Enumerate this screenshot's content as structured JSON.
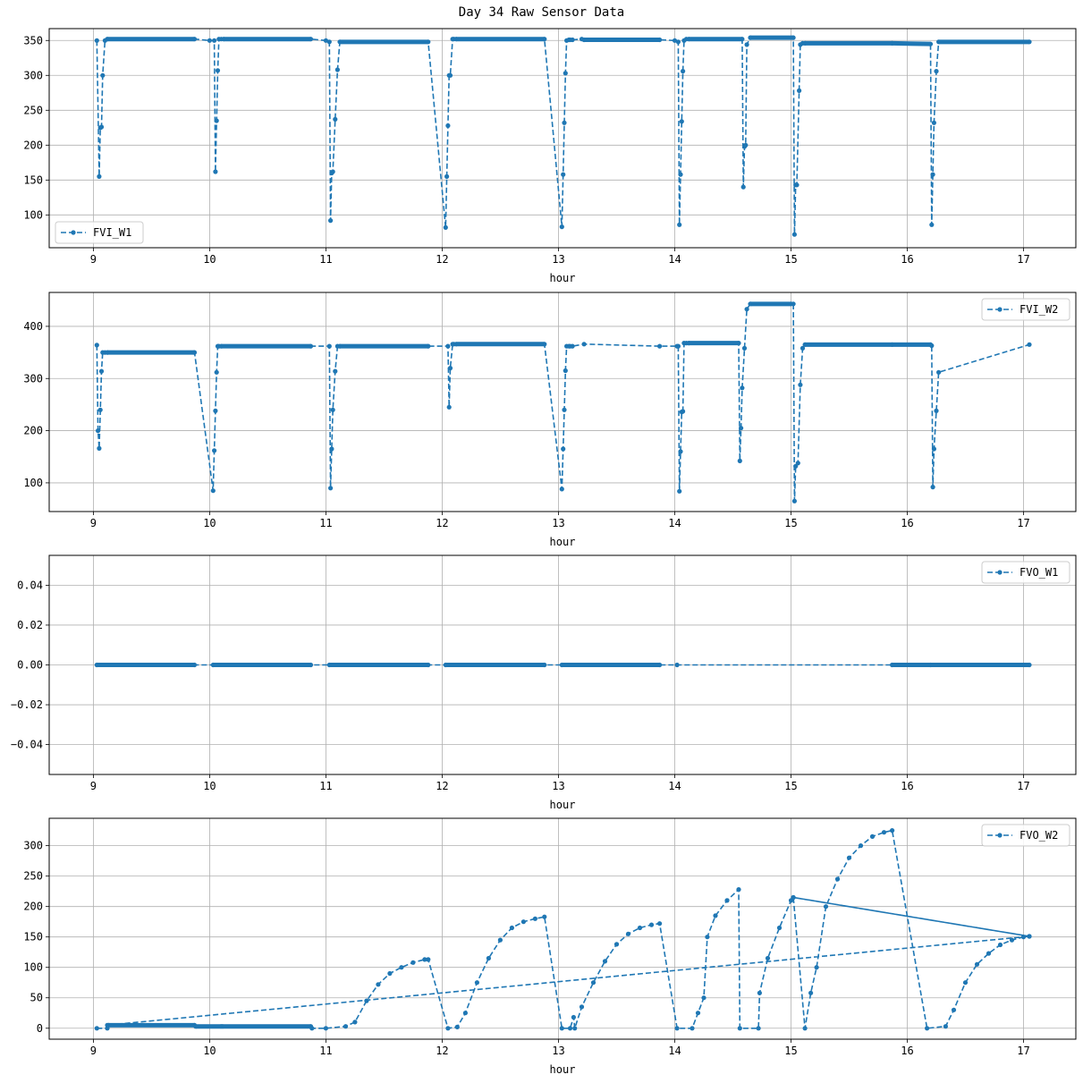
{
  "figure": {
    "title": "Day 34 Raw Sensor Data"
  },
  "style": {
    "line_color": "#1f77b4",
    "grid_color": "#b0b0b0"
  },
  "chart_data": [
    {
      "type": "line",
      "xlabel": "hour",
      "ylabel": "",
      "xlim": [
        8.62,
        17.45
      ],
      "ylim": [
        53,
        367
      ],
      "xticks": [
        9,
        10,
        11,
        12,
        13,
        14,
        15,
        16,
        17
      ],
      "yticks": [
        100,
        150,
        200,
        250,
        300,
        350
      ],
      "grid": true,
      "legend_position": "lower-left",
      "series": [
        {
          "name": "FVI_W1",
          "x": [
            9.03,
            9.05,
            9.06,
            9.07,
            9.08,
            9.1,
            9.12,
            9.87,
            10.0,
            10.04,
            10.05,
            10.06,
            10.07,
            10.08,
            10.1,
            10.12,
            10.87,
            11.0,
            11.03,
            11.04,
            11.05,
            11.06,
            11.08,
            11.1,
            11.12,
            11.88,
            12.03,
            12.04,
            12.05,
            12.06,
            12.07,
            12.09,
            12.1,
            12.12,
            12.88,
            13.03,
            13.04,
            13.05,
            13.06,
            13.07,
            13.09,
            13.1,
            13.12,
            13.2,
            13.22,
            13.87,
            14.0,
            14.03,
            14.04,
            14.05,
            14.06,
            14.07,
            14.08,
            14.1,
            14.12,
            14.58,
            14.59,
            14.6,
            14.61,
            14.62,
            14.65,
            15.02,
            15.03,
            15.04,
            15.05,
            15.07,
            15.08,
            15.1,
            15.12,
            15.87,
            16.2,
            16.21,
            16.22,
            16.23,
            16.25,
            16.27,
            17.05
          ],
          "y": [
            350,
            155,
            225,
            226,
            300,
            350,
            352,
            352,
            350,
            350,
            162,
            235,
            307,
            352,
            352,
            352,
            352,
            350,
            348,
            92,
            160,
            162,
            237,
            308,
            348,
            348,
            82,
            155,
            228,
            300,
            300,
            352,
            352,
            352,
            352,
            83,
            158,
            232,
            303,
            350,
            351,
            351,
            351,
            352,
            351,
            351,
            350,
            348,
            86,
            158,
            234,
            306,
            350,
            352,
            352,
            352,
            140,
            198,
            200,
            344,
            354,
            354,
            72,
            143,
            143,
            278,
            344,
            346,
            346,
            346,
            345,
            86,
            158,
            232,
            306,
            348,
            348
          ]
        }
      ]
    },
    {
      "type": "line",
      "xlabel": "hour",
      "ylabel": "",
      "xlim": [
        8.62,
        17.45
      ],
      "ylim": [
        45,
        465
      ],
      "xticks": [
        9,
        10,
        11,
        12,
        13,
        14,
        15,
        16,
        17
      ],
      "yticks": [
        100,
        200,
        300,
        400
      ],
      "grid": true,
      "legend_position": "upper-right",
      "series": [
        {
          "name": "FVI_W2",
          "x": [
            9.03,
            9.04,
            9.05,
            9.06,
            9.07,
            9.08,
            9.1,
            9.12,
            9.87,
            10.03,
            10.04,
            10.05,
            10.06,
            10.07,
            10.08,
            10.1,
            10.87,
            11.03,
            11.04,
            11.05,
            11.06,
            11.08,
            11.1,
            11.12,
            11.88,
            12.05,
            12.06,
            12.07,
            12.09,
            12.1,
            12.12,
            12.88,
            13.03,
            13.04,
            13.05,
            13.06,
            13.07,
            13.09,
            13.1,
            13.12,
            13.22,
            13.87,
            14.02,
            14.03,
            14.04,
            14.05,
            14.06,
            14.07,
            14.08,
            14.1,
            14.12,
            14.55,
            14.56,
            14.57,
            14.58,
            14.6,
            14.62,
            14.65,
            15.0,
            15.02,
            15.03,
            15.04,
            15.06,
            15.08,
            15.1,
            15.12,
            15.87,
            16.2,
            16.21,
            16.22,
            16.23,
            16.25,
            16.27,
            17.05
          ],
          "y": [
            364,
            200,
            166,
            240,
            314,
            350,
            350,
            350,
            350,
            85,
            162,
            238,
            312,
            362,
            362,
            362,
            362,
            362,
            90,
            165,
            240,
            314,
            362,
            362,
            362,
            362,
            245,
            320,
            366,
            366,
            366,
            366,
            88,
            165,
            240,
            315,
            362,
            362,
            362,
            362,
            366,
            362,
            362,
            362,
            84,
            160,
            236,
            237,
            368,
            368,
            368,
            368,
            142,
            205,
            282,
            358,
            433,
            443,
            443,
            443,
            65,
            132,
            138,
            288,
            358,
            365,
            365,
            365,
            363,
            92,
            165,
            238,
            312,
            365
          ]
        }
      ]
    },
    {
      "type": "line",
      "xlabel": "hour",
      "ylabel": "",
      "xlim": [
        8.62,
        17.45
      ],
      "ylim": [
        -0.055,
        0.055
      ],
      "xticks": [
        9,
        10,
        11,
        12,
        13,
        14,
        15,
        16,
        17
      ],
      "yticks": [
        -0.04,
        -0.02,
        0.0,
        0.02,
        0.04
      ],
      "ytick_labels": [
        "−0.04",
        "−0.02",
        "0.00",
        "0.02",
        "0.04"
      ],
      "grid": true,
      "legend_position": "upper-right",
      "series": [
        {
          "name": "FVO_W1",
          "x": [
            9.03,
            9.87,
            10.03,
            10.87,
            11.03,
            11.88,
            12.03,
            12.88,
            13.03,
            13.87,
            14.02,
            15.87,
            16.2,
            17.05
          ],
          "y": [
            0,
            0,
            0,
            0,
            0,
            0,
            0,
            0,
            0,
            0,
            0,
            0,
            0,
            0
          ]
        }
      ]
    },
    {
      "type": "line",
      "xlabel": "hour",
      "ylabel": "",
      "xlim": [
        8.62,
        17.45
      ],
      "ylim": [
        -18,
        345
      ],
      "xticks": [
        9,
        10,
        11,
        12,
        13,
        14,
        15,
        16,
        17
      ],
      "yticks": [
        0,
        50,
        100,
        150,
        200,
        250,
        300
      ],
      "grid": true,
      "legend_position": "upper-right",
      "series": [
        {
          "name": "FVO_W2",
          "x": [
            9.03,
            9.12,
            9.13,
            9.87,
            9.88,
            10.1,
            10.11,
            10.87,
            10.88,
            11.0,
            11.17,
            11.25,
            11.35,
            11.45,
            11.55,
            11.65,
            11.75,
            11.85,
            11.88,
            12.05,
            12.13,
            12.2,
            12.3,
            12.4,
            12.5,
            12.6,
            12.7,
            12.8,
            12.88,
            13.03,
            13.1,
            13.13,
            13.14,
            13.2,
            13.3,
            13.4,
            13.5,
            13.6,
            13.7,
            13.8,
            13.87,
            14.02,
            14.15,
            14.2,
            14.25,
            14.28,
            14.35,
            14.45,
            14.55,
            14.56,
            14.72,
            14.73,
            14.8,
            14.9,
            15.0,
            15.02,
            15.12,
            15.17,
            15.22,
            15.3,
            15.4,
            15.5,
            15.6,
            15.7,
            15.8,
            15.87,
            16.17,
            16.33,
            16.4,
            16.5,
            16.6,
            16.7,
            16.8,
            16.9,
            17.0,
            17.05,
            15.02,
            17.05,
            9.12
          ],
          "y": [
            0,
            0,
            5,
            5,
            3,
            3,
            3,
            3,
            0,
            0,
            3,
            10,
            45,
            72,
            90,
            100,
            108,
            113,
            113,
            0,
            2,
            25,
            75,
            115,
            145,
            165,
            175,
            180,
            183,
            0,
            0,
            18,
            0,
            35,
            75,
            110,
            138,
            155,
            165,
            170,
            172,
            0,
            0,
            25,
            50,
            150,
            185,
            210,
            228,
            0,
            0,
            58,
            115,
            165,
            210,
            215,
            0,
            58,
            100,
            200,
            245,
            280,
            300,
            315,
            322,
            325,
            0,
            3,
            30,
            75,
            105,
            123,
            137,
            145,
            150,
            151,
            215,
            151,
            5
          ]
        }
      ]
    }
  ]
}
